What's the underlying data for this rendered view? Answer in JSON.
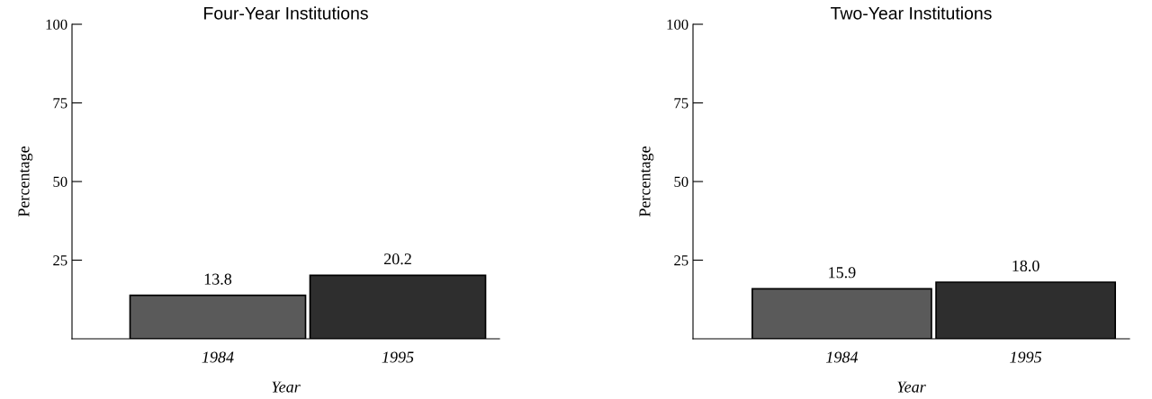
{
  "chart_data": [
    {
      "type": "bar",
      "title": "Four-Year Institutions",
      "xlabel": "Year",
      "ylabel": "Percentage",
      "categories": [
        "1984",
        "1995"
      ],
      "values": [
        13.8,
        20.2
      ],
      "value_labels": [
        "13.8",
        "20.2"
      ],
      "colors": [
        "#5a5a5a",
        "#2e2e2e"
      ],
      "ylim": [
        0,
        100
      ],
      "yticks": [
        25,
        50,
        75,
        100
      ],
      "grid": false,
      "legend": false
    },
    {
      "type": "bar",
      "title": "Two-Year Institutions",
      "xlabel": "Year",
      "ylabel": "Percentage",
      "categories": [
        "1984",
        "1995"
      ],
      "values": [
        15.9,
        18.0
      ],
      "value_labels": [
        "15.9",
        "18.0"
      ],
      "colors": [
        "#5a5a5a",
        "#2e2e2e"
      ],
      "ylim": [
        0,
        100
      ],
      "yticks": [
        25,
        50,
        75,
        100
      ],
      "grid": false,
      "legend": false
    }
  ]
}
